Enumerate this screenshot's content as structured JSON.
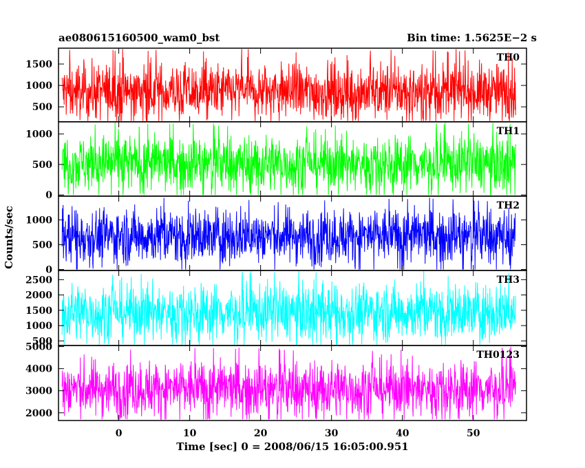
{
  "chart_data": {
    "type": "line",
    "title_left": "ae080615160500_wam0_bst",
    "title_right": "Bin time: 1.5625E−2 s",
    "xlabel": "Time [sec] 0 = 2008/06/15 16:05:00.951",
    "ylabel": "Counts/sec",
    "xlim": [
      -8.5,
      57.5
    ],
    "xticks": [
      0,
      10,
      20,
      30,
      40,
      50
    ],
    "x_range": [
      -8,
      56
    ],
    "bin_time": 0.015625,
    "grid": false,
    "panels": [
      {
        "name": "TH0",
        "color": "#ff0000",
        "ylim": [
          150,
          1870
        ],
        "yticks": [
          500,
          1000,
          1500
        ],
        "mean": 850,
        "min": 170,
        "max": 1860
      },
      {
        "name": "TH1",
        "color": "#00ff00",
        "ylim": [
          -20,
          1200
        ],
        "yticks": [
          0,
          500,
          1000
        ],
        "mean": 520,
        "min": 0,
        "max": 1190
      },
      {
        "name": "TH2",
        "color": "#0000ff",
        "ylim": [
          -20,
          1480
        ],
        "yticks": [
          0,
          500,
          1000
        ],
        "mean": 680,
        "min": 0,
        "max": 1450
      },
      {
        "name": "TH3",
        "color": "#00ffff",
        "ylim": [
          350,
          2800
        ],
        "yticks": [
          500,
          1000,
          1500,
          2000,
          2500
        ],
        "mean": 1450,
        "min": 380,
        "max": 2790
      },
      {
        "name": "TH0123",
        "color": "#ff00ff",
        "ylim": [
          1650,
          5050
        ],
        "yticks": [
          2000,
          3000,
          4000,
          5000
        ],
        "mean": 3100,
        "min": 1700,
        "max": 5000
      }
    ]
  }
}
